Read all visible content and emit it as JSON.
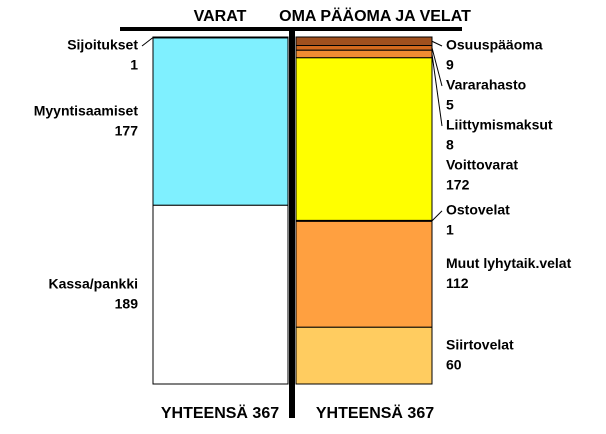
{
  "chart_data": {
    "type": "balance",
    "columns": [
      {
        "title": "VARAT",
        "total_label": "YHTEENSÄ 367",
        "side": "left",
        "segments": [
          {
            "name": "Sijoitukset",
            "value": 1,
            "color": "#7ff0ff"
          },
          {
            "name": "Myyntisaamiset",
            "value": 177,
            "color": "#7ff0ff"
          },
          {
            "name": "Kassa/pankki",
            "value": 189,
            "color": "#ffffff"
          }
        ]
      },
      {
        "title": "OMA PÄÄOMA JA VELAT",
        "total_label": "YHTEENSÄ 367",
        "side": "right",
        "segments": [
          {
            "name": "Osuuspääoma",
            "value": 9,
            "color": "#a0501e"
          },
          {
            "name": "Vararahasto",
            "value": 5,
            "color": "#d2691e"
          },
          {
            "name": "Liittymismaksut",
            "value": 8,
            "color": "#f08c32"
          },
          {
            "name": "Voittovarat",
            "value": 172,
            "color": "#ffff00"
          },
          {
            "name": "Ostovelat",
            "value": 1,
            "color": "#ffa040"
          },
          {
            "name": "Muut lyhytaik.velat",
            "value": 112,
            "color": "#ffa040"
          },
          {
            "name": "Siirtovelat",
            "value": 60,
            "color": "#ffcc60"
          }
        ]
      }
    ]
  }
}
